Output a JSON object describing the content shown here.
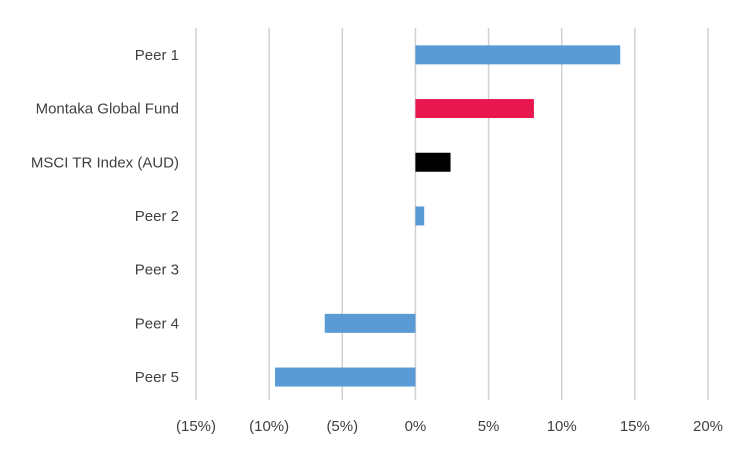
{
  "chart_data": {
    "type": "bar",
    "orientation": "horizontal",
    "categories": [
      "Peer 1",
      "Montaka Global Fund",
      "MSCI TR Index (AUD)",
      "Peer 2",
      "Peer 3",
      "Peer 4",
      "Peer 5"
    ],
    "values": [
      14.0,
      8.1,
      2.4,
      0.6,
      0.0,
      -6.2,
      -9.6
    ],
    "bar_colors": [
      "#5b9bd5",
      "#e8174f",
      "#000000",
      "#5b9bd5",
      "#5b9bd5",
      "#5b9bd5",
      "#5b9bd5"
    ],
    "xlim": [
      -15,
      20
    ],
    "x_ticks": [
      -15,
      -10,
      -5,
      0,
      5,
      10,
      15,
      20
    ],
    "x_tick_labels": [
      "(15%)",
      "(10%)",
      "(5%)",
      "0%",
      "5%",
      "10%",
      "15%",
      "20%"
    ],
    "title": "",
    "xlabel": "",
    "ylabel": "",
    "grid": "vertical",
    "legend": "none"
  }
}
